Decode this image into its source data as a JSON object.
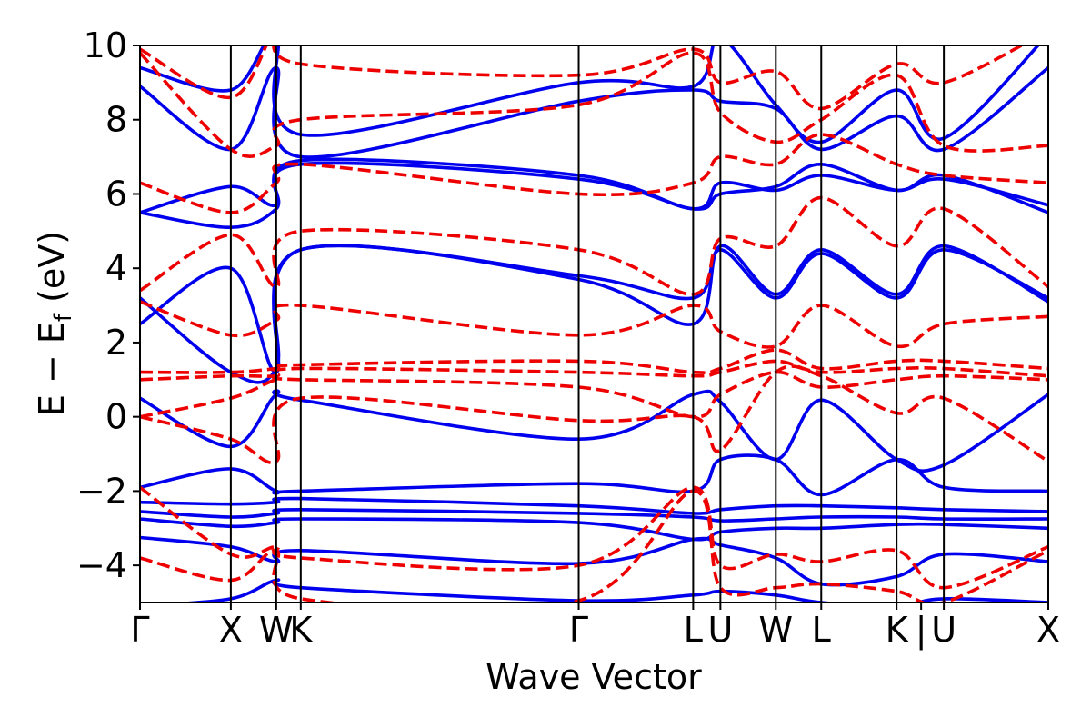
{
  "chart_data": {
    "type": "line",
    "title": "",
    "xlabel": "Wave Vector",
    "ylabel": "E − E",
    "ylabel_sub": "f",
    "ylabel_unit": " (eV)",
    "ylim": [
      -5,
      10
    ],
    "yticks": [
      {
        "value": -4,
        "label": "−4"
      },
      {
        "value": -2,
        "label": "−2"
      },
      {
        "value": 0,
        "label": "0"
      },
      {
        "value": 2,
        "label": "2"
      },
      {
        "value": 4,
        "label": "4"
      },
      {
        "value": 6,
        "label": "6"
      },
      {
        "value": 8,
        "label": "8"
      },
      {
        "value": 10,
        "label": "10"
      }
    ],
    "xlim": [
      0,
      10
    ],
    "kpoints": [
      {
        "label": "Γ",
        "x": 0.0
      },
      {
        "label": "X",
        "x": 1.0
      },
      {
        "label": "W",
        "x": 1.5
      },
      {
        "label": "K",
        "x": 1.77
      },
      {
        "label": "Γ",
        "x": 4.83
      },
      {
        "label": "L",
        "x": 6.09
      },
      {
        "label": "U",
        "x": 6.39
      },
      {
        "label": "W",
        "x": 7.0
      },
      {
        "label": "L",
        "x": 7.5
      },
      {
        "label": "K",
        "x": 8.33
      },
      {
        "label": "|",
        "x": 8.6
      },
      {
        "label": "U",
        "x": 8.85
      },
      {
        "label": "X",
        "x": 10.0
      }
    ],
    "grid": false,
    "series": [
      {
        "style": "solid",
        "color": "#0000ee",
        "bands": [
          [
            -5.1,
            -4.9,
            -4.4,
            -4.6,
            -4.95,
            -4.8,
            -4.7,
            -4.8,
            -5.0,
            -5.1,
            -4.9,
            -5.0
          ],
          [
            -3.25,
            -3.5,
            -3.9,
            -3.6,
            -3.95,
            -3.3,
            -3.45,
            -3.8,
            -4.5,
            -4.3,
            -3.7,
            -3.9
          ],
          [
            -2.75,
            -2.95,
            -2.85,
            -2.75,
            -2.85,
            -3.3,
            -3.1,
            -3.0,
            -3.0,
            -2.9,
            -2.9,
            -3.0
          ],
          [
            -2.55,
            -2.7,
            -2.6,
            -2.5,
            -2.6,
            -2.7,
            -2.8,
            -2.75,
            -2.7,
            -2.7,
            -2.75,
            -2.75
          ],
          [
            -2.3,
            -2.35,
            -2.3,
            -2.2,
            -2.4,
            -2.6,
            -2.5,
            -2.4,
            -2.4,
            -2.45,
            -2.5,
            -2.55
          ],
          [
            -1.9,
            -1.4,
            -2.0,
            -2.0,
            -1.8,
            -2.0,
            -1.15,
            -1.15,
            -2.1,
            -1.15,
            -1.9,
            -2.0
          ],
          [
            0.5,
            -0.8,
            0.6,
            0.45,
            -0.6,
            0.6,
            0.4,
            -1.15,
            0.45,
            -1.15,
            -1.3,
            0.6
          ],
          [
            2.5,
            4.0,
            1.2,
            4.5,
            3.7,
            2.5,
            4.6,
            3.3,
            4.5,
            3.3,
            4.6,
            3.1
          ],
          [
            3.2,
            1.2,
            1.3,
            4.5,
            3.8,
            3.2,
            4.5,
            3.2,
            4.4,
            3.2,
            4.5,
            3.2
          ],
          [
            5.5,
            5.1,
            5.6,
            6.8,
            6.4,
            5.6,
            6.0,
            6.2,
            6.8,
            6.1,
            6.5,
            5.5
          ],
          [
            5.5,
            6.2,
            5.7,
            6.9,
            6.5,
            5.6,
            6.3,
            6.1,
            6.5,
            6.1,
            6.4,
            5.7
          ],
          [
            8.9,
            7.2,
            9.4,
            7.0,
            8.5,
            8.8,
            8.5,
            8.3,
            7.2,
            8.1,
            7.2,
            9.4
          ],
          [
            9.4,
            8.8,
            10.3,
            7.6,
            9.0,
            8.9,
            10.2,
            8.4,
            7.4,
            8.8,
            7.5,
            10.3
          ]
        ]
      },
      {
        "style": "dashed",
        "color": "#ee0000",
        "bands": [
          [
            -3.8,
            -4.4,
            -3.6,
            -4.9,
            -4.95,
            -2.0,
            -4.6,
            -4.6,
            -4.5,
            -4.7,
            -5.0,
            -3.6
          ],
          [
            -1.9,
            -3.7,
            -3.5,
            -3.8,
            -4.0,
            -1.9,
            -4.0,
            -3.7,
            -3.9,
            -3.6,
            -4.6,
            -3.5
          ],
          [
            0.0,
            -0.6,
            -1.2,
            0.5,
            -0.1,
            0.0,
            -0.9,
            1.2,
            1.1,
            0.1,
            0.5,
            -1.2
          ],
          [
            0.0,
            0.5,
            1.0,
            1.0,
            0.8,
            0.0,
            0.6,
            1.2,
            0.8,
            1.0,
            1.1,
            1.0
          ],
          [
            1.0,
            1.1,
            1.1,
            1.3,
            1.2,
            1.1,
            1.2,
            1.5,
            1.2,
            1.3,
            1.3,
            1.1
          ],
          [
            1.2,
            1.2,
            1.3,
            1.4,
            1.5,
            1.2,
            1.3,
            1.8,
            1.3,
            1.5,
            1.5,
            1.3
          ],
          [
            3.1,
            2.2,
            2.6,
            3.0,
            2.2,
            3.0,
            2.3,
            1.9,
            3.0,
            1.9,
            2.5,
            2.7
          ],
          [
            3.4,
            4.9,
            3.5,
            5.0,
            4.5,
            3.3,
            4.8,
            4.6,
            5.9,
            4.6,
            5.6,
            3.5
          ],
          [
            6.3,
            5.5,
            6.3,
            6.8,
            6.0,
            6.3,
            7.0,
            6.8,
            7.6,
            6.8,
            6.5,
            6.3
          ],
          [
            9.8,
            7.2,
            7.3,
            8.0,
            8.4,
            9.8,
            8.2,
            7.4,
            8.0,
            9.2,
            7.3,
            7.3
          ],
          [
            9.9,
            8.6,
            10.4,
            9.5,
            9.2,
            9.9,
            9.0,
            9.3,
            8.3,
            9.5,
            9.0,
            10.4
          ]
        ]
      }
    ]
  }
}
